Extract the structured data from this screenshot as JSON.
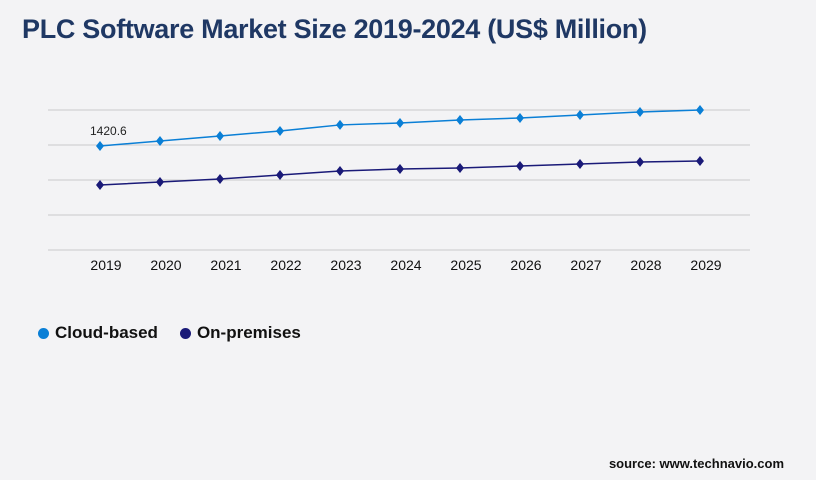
{
  "title": "PLC Software Market Size 2019-2024 (US$ Million)",
  "source": "source: www.technavio.com",
  "chart_data": {
    "type": "line",
    "title": "PLC Software Market Size 2019-2024 (US$ Million)",
    "categories": [
      "2019",
      "2020",
      "2021",
      "2022",
      "2023",
      "2024",
      "2025",
      "2026",
      "2027",
      "2028",
      "2029"
    ],
    "ylim": [
      0,
      1912
    ],
    "grid": true,
    "legend_placement": "bottom-left",
    "series": [
      {
        "name": "Cloud-based",
        "color": "#0a7fd6",
        "values": [
          1420.6,
          1489,
          1557,
          1626,
          1708,
          1735,
          1776,
          1803,
          1844,
          1885,
          1912
        ]
      },
      {
        "name": "On-premises",
        "color": "#1a1a78",
        "values": [
          888,
          929,
          970,
          1025,
          1079,
          1106,
          1120,
          1147,
          1175,
          1202,
          1216
        ]
      }
    ],
    "annotations": [
      {
        "category": "2019",
        "series": "Cloud-based",
        "text": "1420.6"
      }
    ]
  }
}
